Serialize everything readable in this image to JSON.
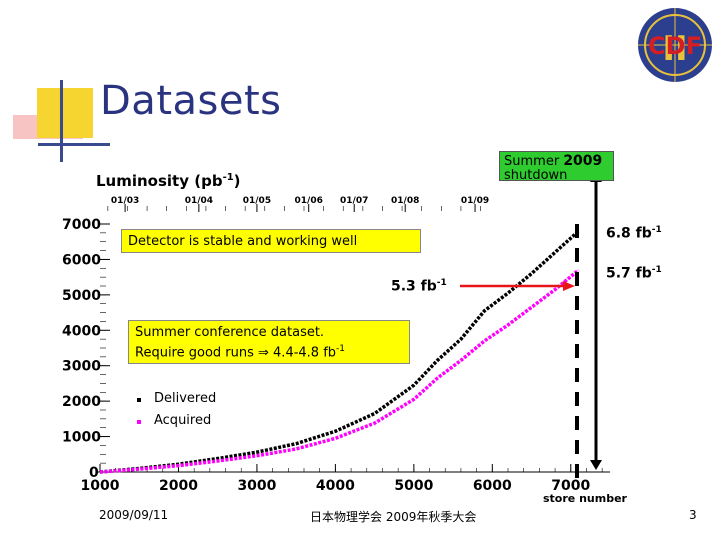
{
  "slide": {
    "title": "Datasets",
    "logo_text": "CDF",
    "logo_roman": "II",
    "footer_date": "2009/09/11",
    "footer_center": "日本物理学会 2009年秋季大会",
    "page_number": "3"
  },
  "annotations": {
    "shutdown_line1": "Summer",
    "shutdown_year": "2009",
    "shutdown_line2": "shutdown",
    "stable": "Detector is stable and working well",
    "mark_53": "5.3 fb",
    "mark_68": "6.8 fb",
    "mark_57": "5.7 fb",
    "exp": "-1",
    "conference_line1": "Summer conference dataset.",
    "conference_line2": "Require good runs ⇒ 4.4-4.8 fb",
    "arrow_color": "#e8141a",
    "shutdown_color": "#2ecc2e",
    "box_color": "#ffff00"
  },
  "chart_data": {
    "type": "line",
    "ylabel": "Luminosity (pb",
    "ylabel_exp": "-1",
    "ylabel_end": ")",
    "xlabel": "store number",
    "xlim": [
      1000,
      7500
    ],
    "ylim": [
      0,
      7000
    ],
    "x_ticks": [
      1000,
      2000,
      3000,
      4000,
      5000,
      6000,
      7000
    ],
    "y_ticks": [
      0,
      1000,
      2000,
      3000,
      4000,
      5000,
      6000,
      7000
    ],
    "date_ticks": [
      {
        "label": "01/03",
        "x": 1320
      },
      {
        "label": "01/04",
        "x": 2260
      },
      {
        "label": "01/05",
        "x": 3000
      },
      {
        "label": "01/06",
        "x": 3660
      },
      {
        "label": "01/07",
        "x": 4240
      },
      {
        "label": "01/08",
        "x": 4890
      },
      {
        "label": "01/09",
        "x": 5780
      }
    ],
    "series": [
      {
        "name": "Delivered",
        "color": "#000000",
        "x": [
          1000,
          1500,
          2000,
          2500,
          3000,
          3500,
          4000,
          4500,
          5000,
          5300,
          5600,
          5900,
          6200,
          6500,
          6800,
          7100
        ],
        "values": [
          0,
          100,
          220,
          380,
          560,
          800,
          1150,
          1650,
          2450,
          3150,
          3750,
          4550,
          5050,
          5600,
          6200,
          6800
        ]
      },
      {
        "name": "Acquired",
        "color": "#ff00ff",
        "x": [
          1000,
          1500,
          2000,
          2500,
          3000,
          3500,
          4000,
          4500,
          5000,
          5300,
          5600,
          5900,
          6200,
          6500,
          6800,
          7100
        ],
        "values": [
          0,
          80,
          180,
          310,
          460,
          650,
          950,
          1380,
          2050,
          2650,
          3150,
          3700,
          4150,
          4650,
          5150,
          5700
        ]
      }
    ]
  }
}
